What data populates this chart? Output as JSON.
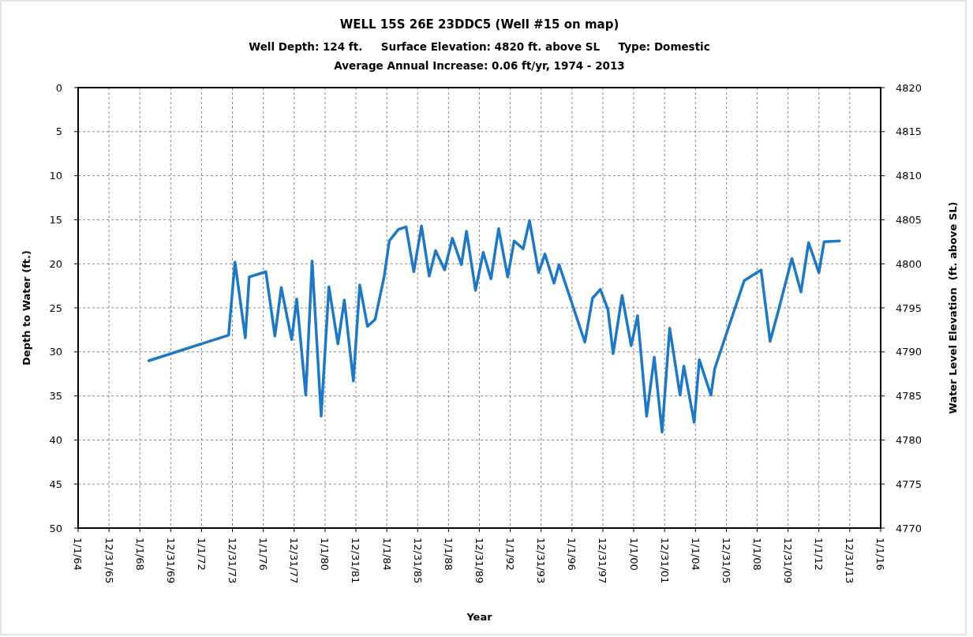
{
  "chart_data": {
    "type": "line",
    "title": "WELL 15S 26E 23DDC5 (Well #15 on map)",
    "subtitle": "Well Depth: 124 ft.     Surface Elevation: 4820 ft. above SL     Type: Domestic\nAverage Annual Increase: 0.06 ft/yr, 1974 - 2013",
    "xlabel": "Year",
    "ylabel": "Depth to Water (ft.)",
    "y2label": "Water Level Elevation  (ft. above SL)",
    "x": [
      "1968-08",
      "1973-10",
      "1974-03",
      "1974-11",
      "1975-02",
      "1976-03",
      "1976-10",
      "1977-03",
      "1977-11",
      "1978-03",
      "1978-10",
      "1979-03",
      "1979-10",
      "1980-04",
      "1980-11",
      "1981-04",
      "1981-11",
      "1982-04",
      "1982-10",
      "1983-04",
      "1983-11",
      "1984-03",
      "1984-10",
      "1985-04",
      "1985-10",
      "1986-04",
      "1986-10",
      "1987-03",
      "1987-10",
      "1988-04",
      "1988-11",
      "1989-03",
      "1989-10",
      "1990-04",
      "1990-10",
      "1991-04",
      "1991-11",
      "1992-04",
      "1992-11",
      "1993-04",
      "1993-11",
      "1994-04",
      "1994-11",
      "1995-03",
      "1996-11",
      "1997-05",
      "1997-11",
      "1998-05",
      "1998-09",
      "1999-04",
      "1999-11",
      "2000-04",
      "2000-11",
      "2001-05",
      "2001-11",
      "2002-05",
      "2003-01",
      "2003-04",
      "2003-12",
      "2004-04",
      "2005-01",
      "2005-04",
      "2007-03",
      "2008-04",
      "2008-11",
      "2009-05",
      "2010-04",
      "2010-11",
      "2011-05",
      "2012-01",
      "2012-05",
      "2013-05"
    ],
    "series": [
      {
        "color": "#1f78c1",
        "values": [
          31.0,
          28.1,
          19.8,
          28.4,
          21.5,
          20.9,
          28.2,
          22.7,
          28.6,
          24.0,
          34.9,
          19.7,
          37.3,
          22.6,
          29.1,
          24.1,
          33.3,
          22.4,
          27.1,
          26.3,
          21.4,
          17.4,
          16.1,
          15.8,
          20.9,
          15.7,
          21.4,
          18.5,
          20.7,
          17.1,
          20.1,
          16.3,
          23.0,
          18.7,
          21.7,
          16.0,
          21.5,
          17.4,
          18.3,
          15.1,
          21.0,
          18.9,
          22.2,
          20.1,
          28.9,
          23.9,
          22.9,
          25.2,
          30.2,
          23.6,
          29.3,
          25.9,
          37.3,
          30.6,
          39.1,
          27.3,
          34.9,
          31.6,
          38.0,
          30.9,
          34.9,
          31.9,
          21.9,
          20.7,
          28.8,
          25.6,
          19.4,
          23.2,
          17.6,
          21.0,
          17.5,
          17.4
        ]
      }
    ],
    "xlim": [
      "1964-01-01",
      "2016-01-01"
    ],
    "xticks": [
      {
        "value": "1964-01-01",
        "label": "1/1/64"
      },
      {
        "value": "1965-12-31",
        "label": "12/31/65"
      },
      {
        "value": "1968-01-01",
        "label": "1/1/68"
      },
      {
        "value": "1969-12-31",
        "label": "12/31/69"
      },
      {
        "value": "1972-01-01",
        "label": "1/1/72"
      },
      {
        "value": "1973-12-31",
        "label": "12/31/73"
      },
      {
        "value": "1976-01-01",
        "label": "1/1/76"
      },
      {
        "value": "1977-12-31",
        "label": "12/31/77"
      },
      {
        "value": "1980-01-01",
        "label": "1/1/80"
      },
      {
        "value": "1981-12-31",
        "label": "12/31/81"
      },
      {
        "value": "1984-01-01",
        "label": "1/1/84"
      },
      {
        "value": "1985-12-31",
        "label": "12/31/85"
      },
      {
        "value": "1988-01-01",
        "label": "1/1/88"
      },
      {
        "value": "1989-12-31",
        "label": "12/31/89"
      },
      {
        "value": "1992-01-01",
        "label": "1/1/92"
      },
      {
        "value": "1993-12-31",
        "label": "12/31/93"
      },
      {
        "value": "1996-01-01",
        "label": "1/1/96"
      },
      {
        "value": "1997-12-31",
        "label": "12/31/97"
      },
      {
        "value": "2000-01-01",
        "label": "1/1/00"
      },
      {
        "value": "2001-12-31",
        "label": "12/31/01"
      },
      {
        "value": "2004-01-01",
        "label": "1/1/04"
      },
      {
        "value": "2005-12-31",
        "label": "12/31/05"
      },
      {
        "value": "2008-01-01",
        "label": "1/1/08"
      },
      {
        "value": "2009-12-31",
        "label": "12/31/09"
      },
      {
        "value": "2012-01-01",
        "label": "1/1/12"
      },
      {
        "value": "2013-12-31",
        "label": "12/31/13"
      },
      {
        "value": "2016-01-01",
        "label": "1/1/16"
      }
    ],
    "ylim": [
      50,
      0
    ],
    "yticks": [
      0,
      5,
      10,
      15,
      20,
      25,
      30,
      35,
      40,
      45,
      50
    ],
    "y2lim": [
      4770,
      4820
    ],
    "y2ticks": [
      4770,
      4775,
      4780,
      4785,
      4790,
      4795,
      4800,
      4805,
      4810,
      4815,
      4820
    ],
    "grid": true,
    "marker": "none",
    "line_style": "solid"
  }
}
